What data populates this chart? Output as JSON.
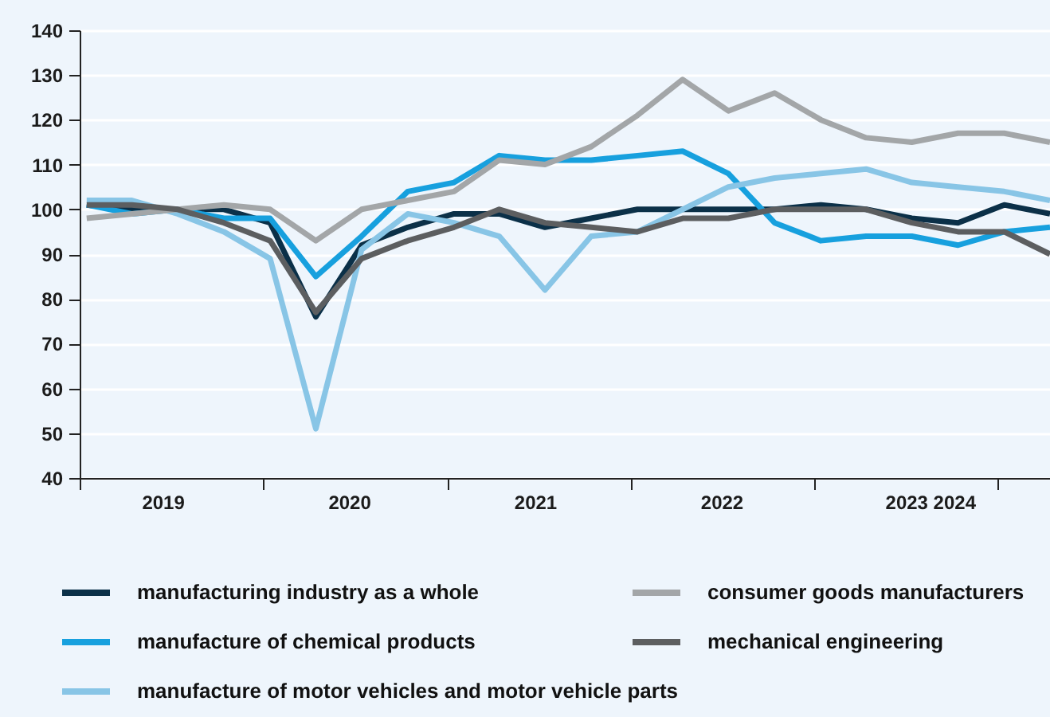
{
  "chart_data": {
    "type": "line",
    "x": [
      "2019-01-15",
      "2019-04-15",
      "2019-07-15",
      "2019-10-15",
      "2020-01-15",
      "2020-04-15",
      "2020-07-15",
      "2020-10-15",
      "2021-01-15",
      "2021-04-15",
      "2021-07-15",
      "2021-10-15",
      "2022-01-15",
      "2022-04-15",
      "2022-07-15",
      "2022-10-15",
      "2023-01-15",
      "2023-04-15",
      "2023-07-15",
      "2023-10-15",
      "2024-01-15",
      "2024-04-15"
    ],
    "series": [
      {
        "name": "manufacturing industry as a whole",
        "color": "#0b3048",
        "values": [
          101,
          100,
          100,
          100,
          97,
          76,
          92,
          96,
          99,
          99,
          96,
          98,
          100,
          100,
          100,
          100,
          101,
          100,
          98,
          97,
          101,
          99
        ]
      },
      {
        "name": "manufacture of chemical products",
        "color": "#17a0de",
        "values": [
          101,
          99,
          100,
          98,
          98,
          85,
          94,
          104,
          106,
          112,
          111,
          111,
          112,
          113,
          108,
          97,
          93,
          94,
          94,
          92,
          95,
          96
        ]
      },
      {
        "name": "manufacture of motor vehicles and motor vehicle parts",
        "color": "#88c5e6",
        "values": [
          102,
          102,
          99,
          95,
          89,
          51,
          91,
          99,
          97,
          94,
          82,
          94,
          95,
          100,
          105,
          107,
          108,
          109,
          106,
          105,
          104,
          102
        ]
      },
      {
        "name": "consumer goods manufacturers",
        "color": "#a3a6a8",
        "values": [
          98,
          99,
          100,
          101,
          100,
          93,
          100,
          102,
          104,
          111,
          110,
          114,
          121,
          129,
          122,
          126,
          120,
          116,
          115,
          117,
          117,
          115
        ]
      },
      {
        "name": "mechanical engineering",
        "color": "#5c5e60",
        "values": [
          101,
          101,
          100,
          97,
          93,
          77,
          89,
          93,
          96,
          100,
          97,
          96,
          95,
          98,
          98,
          100,
          100,
          100,
          97,
          95,
          95,
          90
        ]
      }
    ],
    "xlim": [
      "2019-01-01",
      "2024-04-15"
    ],
    "xticks": [
      {
        "value": "2019-01-01",
        "label": null
      },
      {
        "value": "2019-06-15",
        "label": "2019"
      },
      {
        "value": "2020-01-01",
        "label": null
      },
      {
        "value": "2020-06-20",
        "label": "2020"
      },
      {
        "value": "2021-01-01",
        "label": null
      },
      {
        "value": "2021-06-25",
        "label": "2021"
      },
      {
        "value": "2022-01-01",
        "label": null
      },
      {
        "value": "2022-07-01",
        "label": "2022"
      },
      {
        "value": "2023-01-01",
        "label": null
      },
      {
        "value": "2023-08-20",
        "label": "2023 2024"
      },
      {
        "value": "2024-01-01",
        "label": null
      }
    ],
    "ylim": [
      40,
      140
    ],
    "yticks": [
      40,
      50,
      60,
      70,
      80,
      90,
      100,
      110,
      120,
      130,
      140
    ],
    "grid": "y",
    "legend": "bottom"
  }
}
